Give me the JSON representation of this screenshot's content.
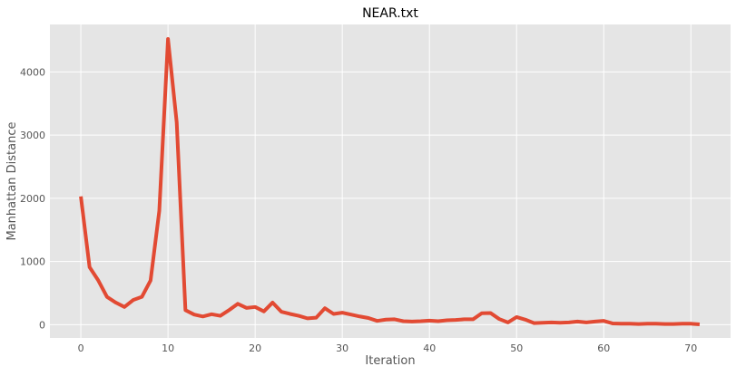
{
  "chart_data": {
    "type": "line",
    "title": "NEAR.txt",
    "xlabel": "Iteration",
    "ylabel": "Manhattan Distance",
    "xlim": [
      -3.55,
      74.55
    ],
    "ylim": [
      -210,
      4750
    ],
    "xticks": [
      0,
      10,
      20,
      30,
      40,
      50,
      60,
      70
    ],
    "yticks": [
      0,
      1000,
      2000,
      3000,
      4000
    ],
    "grid": true,
    "legend": "none",
    "series": [
      {
        "color": "#e24a33",
        "x": [
          0,
          1,
          2,
          3,
          4,
          5,
          6,
          7,
          8,
          9,
          10,
          11,
          12,
          13,
          14,
          15,
          16,
          17,
          18,
          19,
          20,
          21,
          22,
          23,
          24,
          25,
          26,
          27,
          28,
          29,
          30,
          31,
          32,
          33,
          34,
          35,
          36,
          37,
          38,
          39,
          40,
          41,
          42,
          43,
          44,
          45,
          46,
          47,
          48,
          49,
          50,
          51,
          52,
          53,
          54,
          55,
          56,
          57,
          58,
          59,
          60,
          61,
          62,
          63,
          64,
          65,
          66,
          67,
          68,
          69,
          70,
          71
        ],
        "y": [
          2030,
          910,
          700,
          440,
          350,
          280,
          390,
          440,
          700,
          1800,
          4520,
          3200,
          230,
          160,
          130,
          165,
          140,
          230,
          330,
          265,
          280,
          210,
          350,
          205,
          170,
          140,
          100,
          110,
          260,
          170,
          190,
          160,
          130,
          105,
          60,
          80,
          85,
          55,
          50,
          55,
          65,
          55,
          70,
          75,
          85,
          85,
          180,
          185,
          90,
          35,
          120,
          80,
          25,
          30,
          35,
          30,
          35,
          50,
          35,
          50,
          60,
          20,
          15,
          15,
          10,
          15,
          15,
          10,
          10,
          15,
          15,
          5
        ]
      }
    ],
    "colors": {
      "plot_background": "#e5e5e5",
      "grid": "#ffffff",
      "tick_label": "#555555",
      "axis_label": "#555555",
      "title": "#000000"
    }
  }
}
